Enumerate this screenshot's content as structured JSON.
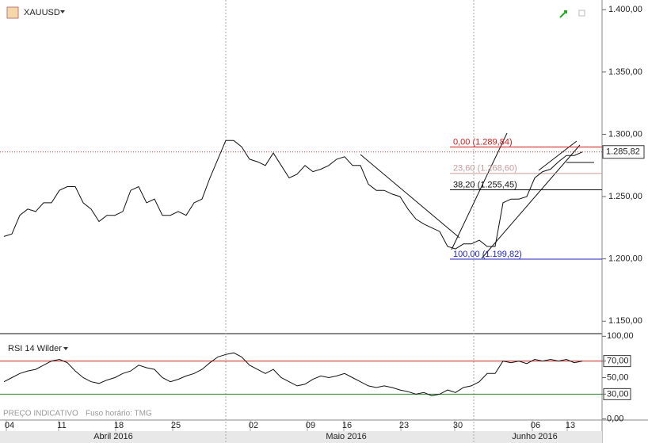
{
  "symbol": "XAUUSD",
  "footer": {
    "source": "PREÇO INDICATIVO",
    "timezone": "Fuso horário: TMG"
  },
  "chart_data": [
    {
      "type": "line",
      "color": "#111111",
      "xlim": [
        -0.5,
        75.5
      ],
      "ylim": [
        1140,
        1407.8
      ],
      "values": [
        1218,
        1220,
        1235,
        1240,
        1238,
        1245,
        1245,
        1255,
        1258,
        1258,
        1245,
        1240,
        1230,
        1235,
        1235,
        1238,
        1255,
        1258,
        1245,
        1248,
        1235,
        1235,
        1238,
        1235,
        1245,
        1248,
        1265,
        1280,
        1295,
        1295,
        1290,
        1280,
        1278,
        1275,
        1285,
        1275,
        1265,
        1268,
        1275,
        1270,
        1272,
        1275,
        1280,
        1282,
        1275,
        1275,
        1260,
        1255,
        1255,
        1252,
        1250,
        1240,
        1232,
        1228,
        1225,
        1222,
        1210,
        1208,
        1212,
        1212,
        1215,
        1210,
        1210,
        1245,
        1248,
        1248,
        1250,
        1265,
        1270,
        1272,
        1278,
        1283,
        1283,
        1285.82
      ],
      "last": {
        "value": 1285.82,
        "label": "1.285,82"
      },
      "yticks": [
        {
          "value": 1400,
          "label": "1.400,00"
        },
        {
          "value": 1350,
          "label": "1.350,00"
        },
        {
          "value": 1300,
          "label": "1.300,00"
        },
        {
          "value": 1250,
          "label": "1.250,00"
        },
        {
          "value": 1200,
          "label": "1.200,00"
        },
        {
          "value": 1150,
          "label": "1.150,00"
        }
      ],
      "fib_levels": [
        {
          "value": 1289.84,
          "label": "0,00 (1.289,84)",
          "color": "#d11a1a"
        },
        {
          "value": 1268.6,
          "label": "23,60 (1.268,60)",
          "color": "#c99a9a"
        },
        {
          "value": 1255.45,
          "label": "38,20 (1.255,45)",
          "color": "#111111"
        },
        {
          "value": 1199.82,
          "label": "100,00 (1.199,82)",
          "color": "#2222bb"
        }
      ],
      "xticks": [
        {
          "value": 0.7,
          "label": "04"
        },
        {
          "value": 7.3,
          "label": "11"
        },
        {
          "value": 14.5,
          "label": "18"
        },
        {
          "value": 21.7,
          "label": "25"
        },
        {
          "value": 31.5,
          "label": "02"
        },
        {
          "value": 38.7,
          "label": "09"
        },
        {
          "value": 43.3,
          "label": "16"
        },
        {
          "value": 50.5,
          "label": "23"
        },
        {
          "value": 57.3,
          "label": "30"
        },
        {
          "value": 67.1,
          "label": "06"
        },
        {
          "value": 71.5,
          "label": "13"
        }
      ],
      "months": [
        {
          "value": 13.8,
          "label": "Abril 2016"
        },
        {
          "value": 43.2,
          "label": "Maio 2016"
        },
        {
          "value": 67,
          "label": "Junho 2016"
        }
      ]
    },
    {
      "type": "line",
      "title": "RSI 14 Wilder",
      "color": "#111111",
      "ylim": [
        -1.3,
        103.2
      ],
      "values": [
        45,
        50,
        55,
        58,
        60,
        65,
        70,
        72,
        68,
        58,
        50,
        45,
        43,
        47,
        50,
        55,
        58,
        65,
        62,
        60,
        50,
        45,
        48,
        52,
        55,
        60,
        68,
        75,
        78,
        80,
        75,
        65,
        60,
        55,
        60,
        50,
        45,
        40,
        42,
        48,
        52,
        50,
        52,
        55,
        50,
        45,
        40,
        38,
        40,
        38,
        35,
        33,
        30,
        32,
        28,
        30,
        35,
        32,
        38,
        40,
        45,
        55,
        55,
        70,
        68,
        70,
        67,
        72,
        70,
        72,
        70,
        72,
        68,
        70
      ],
      "yticks": [
        {
          "value": 100,
          "label": "100,00"
        },
        {
          "value": 70,
          "label": "70,00"
        },
        {
          "value": 50,
          "label": "50,00"
        },
        {
          "value": 30,
          "label": "30,00"
        },
        {
          "value": 0,
          "label": "0,00"
        }
      ],
      "bands": [
        {
          "value": 70,
          "color": "#cc2222"
        },
        {
          "value": 30,
          "color": "#228822"
        }
      ]
    }
  ]
}
